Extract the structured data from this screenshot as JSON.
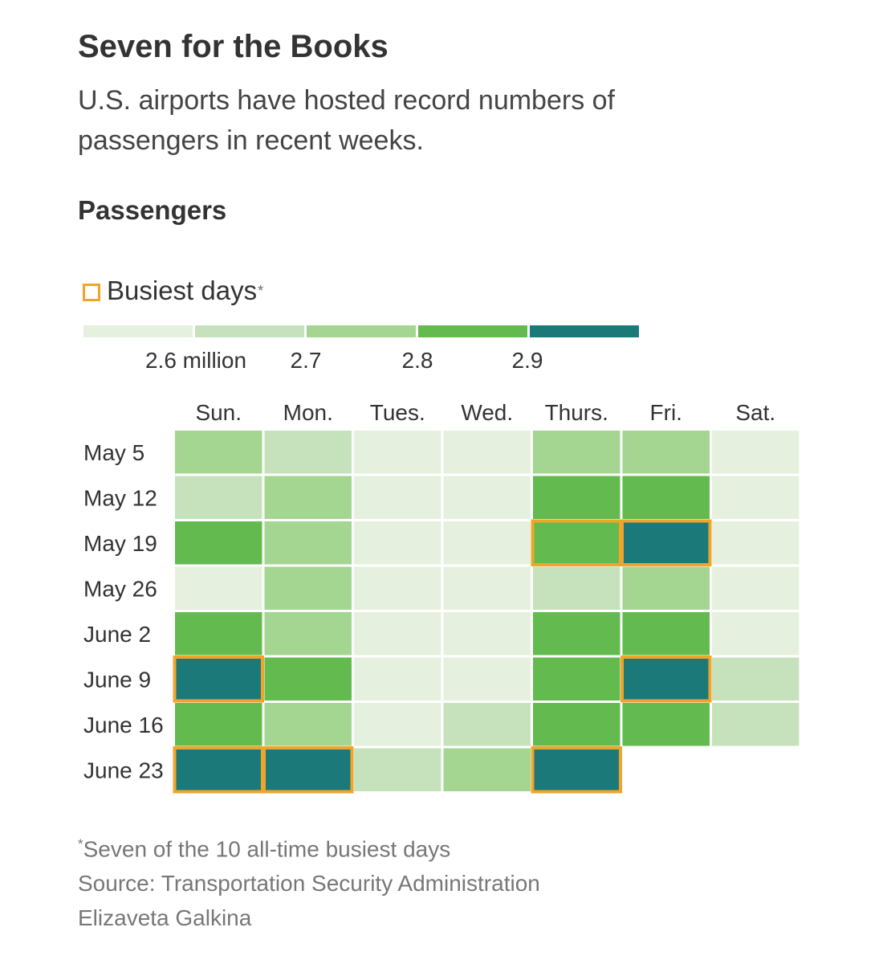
{
  "header": {
    "title": "Seven for the Books",
    "subtitle": "U.S. airports have hosted record numbers of passengers in recent weeks."
  },
  "section_label": "Passengers",
  "legend": {
    "busiest_label": "Busiest days",
    "busiest_marker": "*",
    "scale_labels": [
      "2.6 million",
      "2.7",
      "2.8",
      "2.9"
    ],
    "scale_colors": [
      "#e5f1de",
      "#c6e2bd",
      "#a4d591",
      "#63bb4f",
      "#1b7a79"
    ],
    "highlight_color": "#f2a42a"
  },
  "chart_data": {
    "type": "heatmap",
    "title": "Passengers",
    "columns": [
      "Sun.",
      "Mon.",
      "Tues.",
      "Wed.",
      "Thurs.",
      "Fri.",
      "Sat."
    ],
    "rows": [
      "May 5",
      "May 12",
      "May 19",
      "May 26",
      "June 2",
      "June 9",
      "June 16",
      "June 23"
    ],
    "bins": [
      "< 2.6 million",
      "2.6–2.7 million",
      "2.7–2.8 million",
      "2.8–2.9 million",
      "≥ 2.9 million"
    ],
    "values": [
      [
        2,
        1,
        0,
        0,
        2,
        2,
        0
      ],
      [
        1,
        2,
        0,
        0,
        3,
        3,
        0
      ],
      [
        3,
        2,
        0,
        0,
        3,
        4,
        0
      ],
      [
        0,
        2,
        0,
        0,
        1,
        2,
        0
      ],
      [
        3,
        2,
        0,
        0,
        3,
        3,
        0
      ],
      [
        4,
        3,
        0,
        0,
        3,
        4,
        1
      ],
      [
        3,
        2,
        0,
        1,
        3,
        3,
        1
      ],
      [
        4,
        4,
        1,
        2,
        4,
        null,
        null
      ]
    ],
    "busiest_days": [
      [
        "May 19",
        "Thurs."
      ],
      [
        "May 19",
        "Fri."
      ],
      [
        "June 9",
        "Sun."
      ],
      [
        "June 9",
        "Fri."
      ],
      [
        "June 23",
        "Sun."
      ],
      [
        "June 23",
        "Mon."
      ],
      [
        "June 23",
        "Thurs."
      ]
    ]
  },
  "footer": {
    "note_marker": "*",
    "note": "Seven of the 10 all-time busiest days",
    "source": "Source: Transportation Security Administration",
    "credit": "Elizaveta Galkina"
  }
}
